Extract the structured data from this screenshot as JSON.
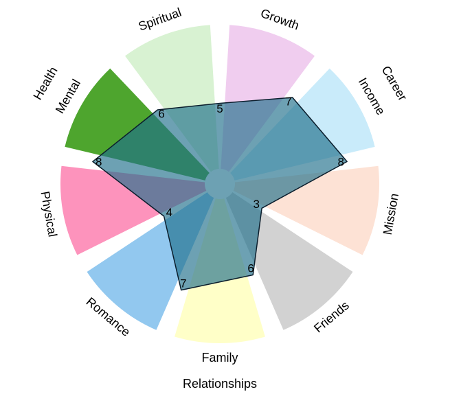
{
  "chart_data": {
    "type": "radar",
    "title": "",
    "r_max": 10,
    "categories": [
      "Spiritual",
      "Growth",
      "Income",
      "Mission",
      "Friends",
      "Family",
      "Romance",
      "Physical",
      "Mental"
    ],
    "values": [
      6,
      5,
      7,
      8,
      3,
      6,
      7,
      4,
      8
    ],
    "segment_colors": [
      "#d8f2d2",
      "#f0cdef",
      "#c9ebfa",
      "#fde2d5",
      "#d2d2d2",
      "#ffffc8",
      "#92c8ef",
      "#fd93bc",
      "#4ea52e"
    ],
    "polygon_fill": "#1f6f8b",
    "polygon_opacity": 0.65,
    "polygon_stroke": "#0b1e2d",
    "groups": [
      {
        "label": "Career"
      },
      {
        "label": "Relationships"
      },
      {
        "label": "Health"
      }
    ]
  }
}
